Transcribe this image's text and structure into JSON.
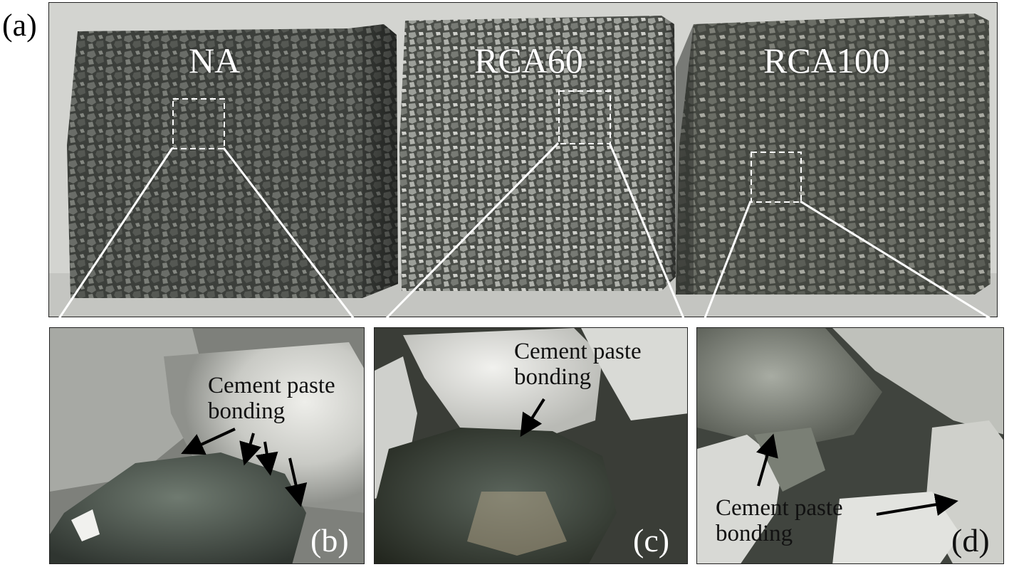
{
  "panel_letters": {
    "a": "(a)",
    "b": "(b)",
    "c": "(c)",
    "d": "(d)"
  },
  "cubes": {
    "na": "NA",
    "rca60": "RCA60",
    "rca100": "RCA100"
  },
  "annotations": {
    "b_line1": "Cement paste",
    "b_line2": "bonding",
    "c_line1": "Cement paste",
    "c_line2": "bonding",
    "d_line1": "Cement paste",
    "d_line2": "bonding"
  },
  "colors": {
    "cube_dark": "#3e413d",
    "cube_grey": "#5d605b",
    "aggregate_light": "#8a8d88",
    "paste_white": "#e6e6e2",
    "background": "#d2d3cf"
  }
}
